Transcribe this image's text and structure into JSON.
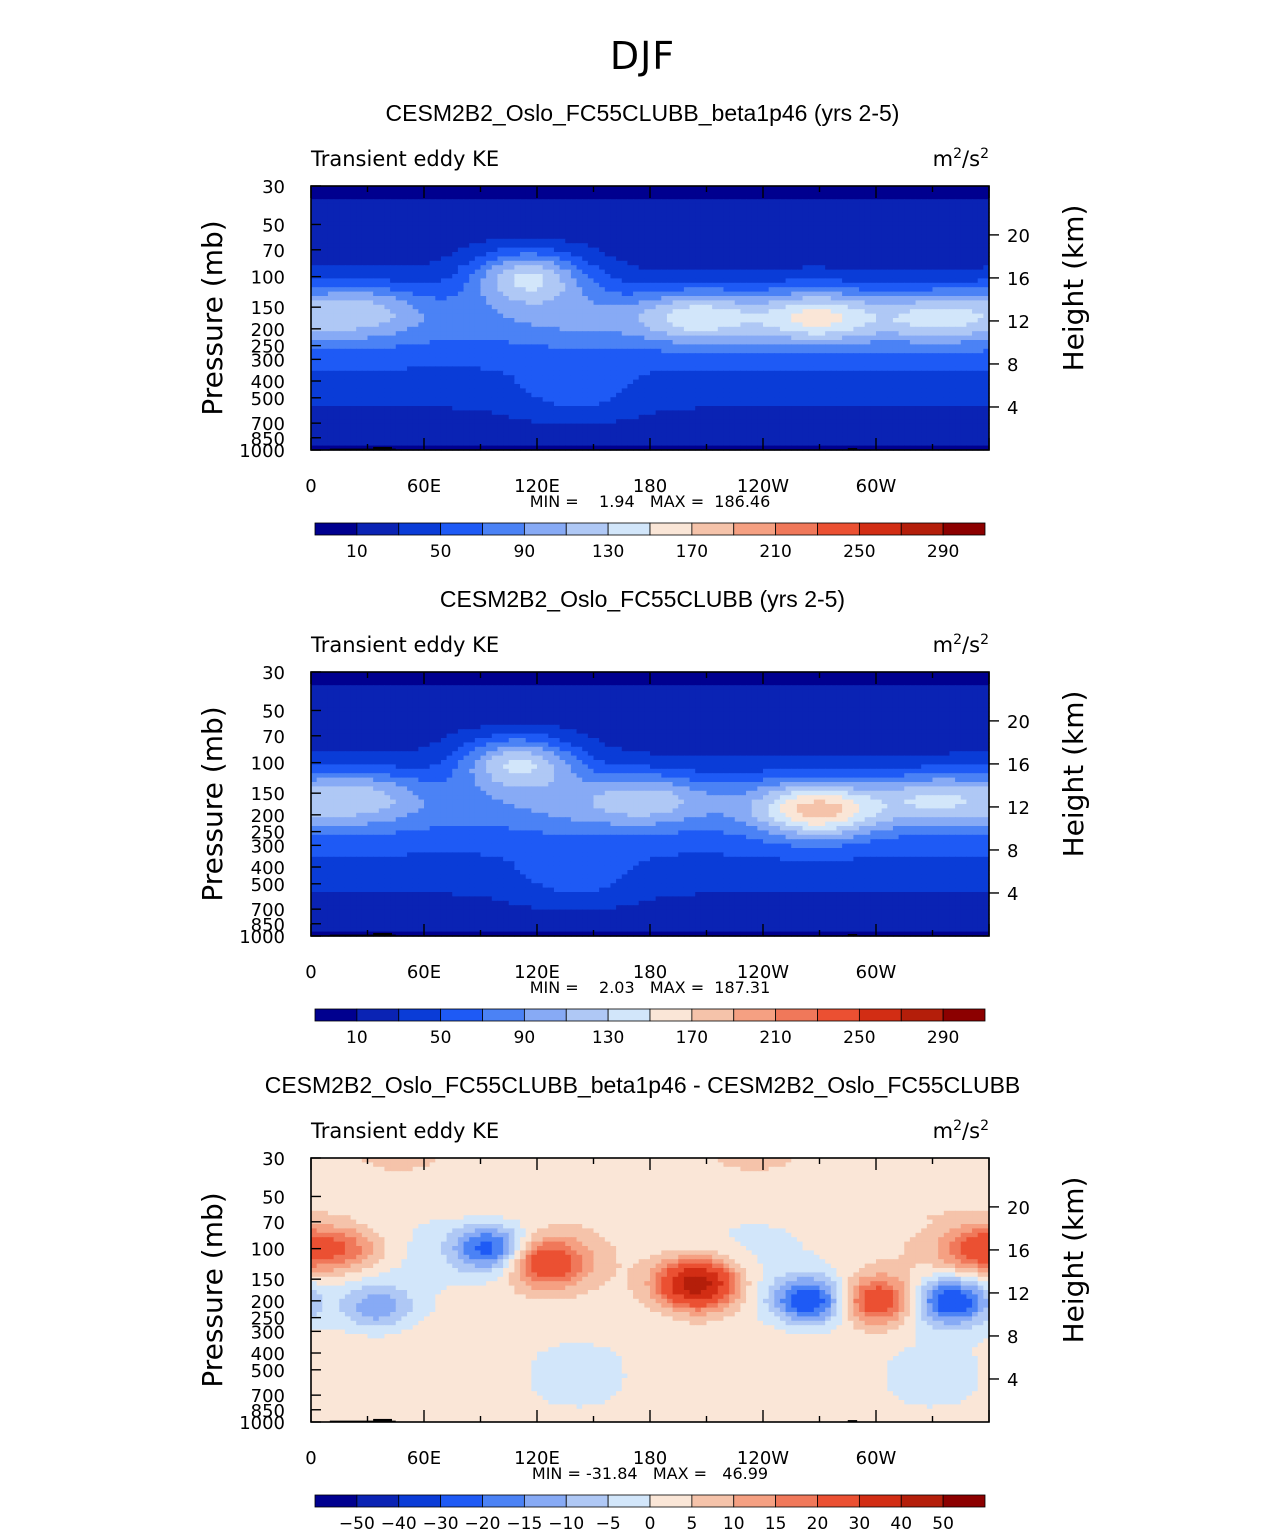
{
  "page_title": "DJF",
  "panels": [
    {
      "title": "CESM2B2_Oslo_FC55CLUBB_beta1p46 (yrs 2-5)",
      "variable": "Transient eddy KE",
      "units_base": "m",
      "units_exp1": "2",
      "units_mid": "/s",
      "units_exp2": "2",
      "stats": "MIN =    1.94   MAX =  186.46",
      "colorbar_labels": [
        "10",
        "50",
        "90",
        "130",
        "170",
        "210",
        "250",
        "290"
      ],
      "palette": "seq"
    },
    {
      "title": "CESM2B2_Oslo_FC55CLUBB (yrs 2-5)",
      "variable": "Transient eddy KE",
      "units_base": "m",
      "units_exp1": "2",
      "units_mid": "/s",
      "units_exp2": "2",
      "stats": "MIN =    2.03   MAX =  187.31",
      "colorbar_labels": [
        "10",
        "50",
        "90",
        "130",
        "170",
        "210",
        "250",
        "290"
      ],
      "palette": "seq"
    },
    {
      "title": "CESM2B2_Oslo_FC55CLUBB_beta1p46 - CESM2B2_Oslo_FC55CLUBB",
      "variable": "Transient eddy KE",
      "units_base": "m",
      "units_exp1": "2",
      "units_mid": "/s",
      "units_exp2": "2",
      "stats": "MIN = -31.84   MAX =   46.99",
      "colorbar_labels": [
        "-50",
        "-40",
        "-30",
        "-20",
        "-15",
        "-10",
        "-5",
        "0",
        "5",
        "10",
        "15",
        "20",
        "30",
        "40",
        "50"
      ],
      "palette": "div"
    }
  ],
  "axes": {
    "ylabel_left": "Pressure (mb)",
    "ylabel_right": "Height (km)",
    "pressure_ticks": [
      "30",
      "50",
      "70",
      "100",
      "150",
      "200",
      "250",
      "300",
      "400",
      "500",
      "700",
      "850",
      "1000"
    ],
    "height_ticks": [
      "20",
      "16",
      "12",
      "8",
      "4"
    ],
    "lon_ticks": [
      "0",
      "60E",
      "120E",
      "180",
      "120W",
      "60W"
    ]
  },
  "colors": {
    "seq": [
      "#00008f",
      "#0a23b4",
      "#0a3cd7",
      "#1e5af5",
      "#4b82f5",
      "#87aaf5",
      "#afc8f5",
      "#d2e6fa",
      "#fae6d7",
      "#f5c3aa",
      "#f5a082",
      "#f0785a",
      "#eb5032",
      "#d22d14",
      "#b41e0a",
      "#8c0000"
    ],
    "div": [
      "#00008f",
      "#0a23b4",
      "#0a3cd7",
      "#1e5af5",
      "#4b82f5",
      "#87aaf5",
      "#afc8f5",
      "#d2e6fa",
      "#fae6d7",
      "#f5c3aa",
      "#f5a082",
      "#f0785a",
      "#eb5032",
      "#d22d14",
      "#b41e0a",
      "#8c0000"
    ]
  },
  "chart_data": [
    {
      "type": "heatmap",
      "title": "CESM2B2_Oslo_FC55CLUBB_beta1p46 (yrs 2-5)",
      "variable": "Transient eddy KE",
      "units": "m2/s2",
      "xlabel": "",
      "ylabel": "Pressure (mb)",
      "y2label": "Height (km)",
      "xlim": [
        0,
        357
      ],
      "ylim": [
        1000,
        30
      ],
      "min": 1.94,
      "max": 186.46,
      "levels": [
        10,
        30,
        50,
        70,
        90,
        110,
        130,
        150,
        170,
        190,
        210,
        230,
        250,
        270,
        290
      ],
      "features": [
        {
          "lon": 115,
          "p": 100,
          "value": 175
        },
        {
          "lon": 205,
          "p": 170,
          "value": 145
        },
        {
          "lon": 270,
          "p": 170,
          "value": 140
        },
        {
          "lon": 330,
          "p": 170,
          "value": 135
        },
        {
          "lon": 25,
          "p": 150,
          "value": 110
        },
        {
          "lon": 140,
          "p": 480,
          "value": 95
        }
      ]
    },
    {
      "type": "heatmap",
      "title": "CESM2B2_Oslo_FC55CLUBB (yrs 2-5)",
      "variable": "Transient eddy KE",
      "units": "m2/s2",
      "xlabel": "",
      "ylabel": "Pressure (mb)",
      "y2label": "Height (km)",
      "xlim": [
        0,
        357
      ],
      "ylim": [
        1000,
        30
      ],
      "min": 2.03,
      "max": 187.31,
      "levels": [
        10,
        30,
        50,
        70,
        90,
        110,
        130,
        150,
        170,
        190,
        210,
        230,
        250,
        270,
        290
      ],
      "features": [
        {
          "lon": 110,
          "p": 100,
          "value": 175
        },
        {
          "lon": 180,
          "p": 160,
          "value": 120
        },
        {
          "lon": 270,
          "p": 190,
          "value": 165
        },
        {
          "lon": 330,
          "p": 160,
          "value": 130
        },
        {
          "lon": 25,
          "p": 150,
          "value": 110
        },
        {
          "lon": 140,
          "p": 480,
          "value": 95
        }
      ]
    },
    {
      "type": "heatmap",
      "title": "CESM2B2_Oslo_FC55CLUBB_beta1p46 - CESM2B2_Oslo_FC55CLUBB",
      "variable": "Transient eddy KE",
      "units": "m2/s2",
      "xlabel": "",
      "ylabel": "Pressure (mb)",
      "y2label": "Height (km)",
      "xlim": [
        0,
        357
      ],
      "ylim": [
        1000,
        30
      ],
      "min": -31.84,
      "max": 46.99,
      "levels": [
        -50,
        -40,
        -30,
        -20,
        -15,
        -10,
        -5,
        0,
        5,
        10,
        15,
        20,
        30,
        40,
        50
      ],
      "features": [
        {
          "lon": 205,
          "p": 160,
          "value": 45
        },
        {
          "lon": 125,
          "p": 120,
          "value": 25
        },
        {
          "lon": 95,
          "p": 100,
          "value": -25
        },
        {
          "lon": 265,
          "p": 200,
          "value": -28
        },
        {
          "lon": 300,
          "p": 200,
          "value": 25
        },
        {
          "lon": 340,
          "p": 200,
          "value": -30
        },
        {
          "lon": 35,
          "p": 220,
          "value": -15
        },
        {
          "lon": 20,
          "p": 100,
          "value": 15
        },
        {
          "lon": 355,
          "p": 100,
          "value": 20
        }
      ]
    }
  ]
}
